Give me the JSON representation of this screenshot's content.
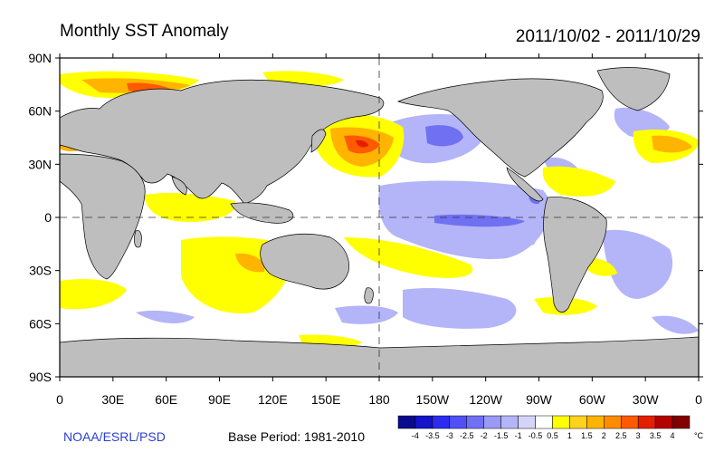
{
  "header": {
    "title": "Monthly SST Anomaly",
    "period": "2011/10/02 - 2011/10/29"
  },
  "footer": {
    "credit": "NOAA/ESRL/PSD",
    "base_period": "Base Period: 1981-2010"
  },
  "axes": {
    "lat_labels": [
      "90N",
      "60N",
      "30N",
      "0",
      "30S",
      "60S",
      "90S"
    ],
    "lon_labels": [
      "0",
      "30E",
      "60E",
      "90E",
      "120E",
      "150E",
      "180",
      "150W",
      "120W",
      "90W",
      "60W",
      "30W",
      "0"
    ]
  },
  "colorbar": {
    "unit": "°C",
    "tick_labels": [
      "-4",
      "-3.5",
      "-3",
      "-2.5",
      "-2",
      "-1.5",
      "-1",
      "-0.5",
      "0.5",
      "1",
      "1.5",
      "2",
      "2.5",
      "3",
      "3.5",
      "4"
    ],
    "colors": [
      "#0a0a8c",
      "#1414c8",
      "#2c2cf0",
      "#5050f5",
      "#7070f2",
      "#9a9af5",
      "#b4b4f8",
      "#d4d4fa",
      "#ffffff",
      "#ffff00",
      "#ffd21e",
      "#ffb400",
      "#ff8c00",
      "#ff5a00",
      "#e61e00",
      "#b40000",
      "#800000"
    ]
  },
  "colors": {
    "land": "#bebebe",
    "ocean": "#ffffff",
    "warm_anomaly": "#ffff00",
    "cool_anomaly": "#b4b4f8"
  }
}
